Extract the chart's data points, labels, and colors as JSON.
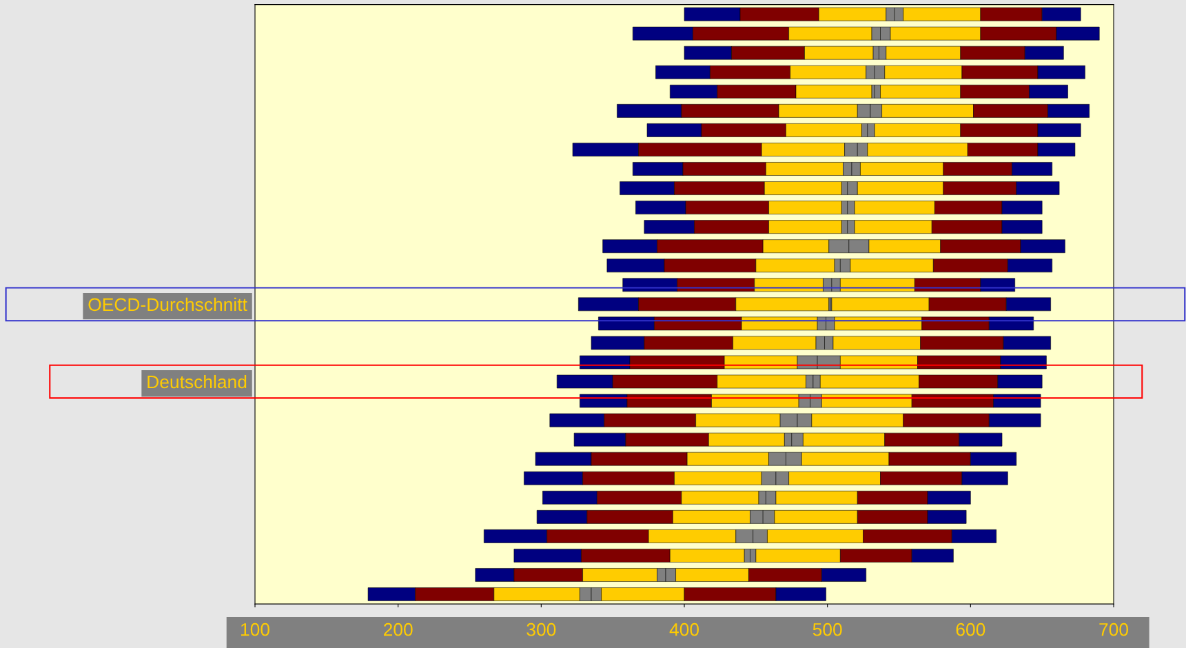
{
  "chart_data": {
    "type": "bar",
    "orientation": "horizontal",
    "categories": [
      null,
      null,
      null,
      null,
      null,
      null,
      null,
      null,
      null,
      null,
      null,
      null,
      null,
      null,
      null,
      "OECD-Durchschnitt",
      null,
      null,
      null,
      "Deutschland",
      null,
      null,
      null,
      null,
      null,
      null,
      null,
      null,
      null,
      null,
      null
    ],
    "series": [
      {
        "color": "#000080",
        "base": [
          400,
          364,
          400,
          380,
          390,
          353,
          374,
          322,
          364,
          355,
          366,
          372,
          343,
          346,
          357,
          326,
          340,
          335,
          327,
          311,
          327,
          306,
          323,
          296,
          288,
          301,
          297,
          260,
          281,
          254,
          179
        ],
        "values": [
          39,
          42,
          33,
          38,
          33,
          45,
          38,
          46,
          35,
          38,
          35,
          35,
          38,
          40,
          38,
          42,
          39,
          37,
          35,
          39,
          33,
          38,
          36,
          39,
          41,
          38,
          35,
          44,
          47,
          27,
          33
        ]
      },
      {
        "color": "#800000",
        "base": [
          439,
          406,
          433,
          418,
          423,
          398,
          412,
          368,
          399,
          393,
          401,
          407,
          381,
          386,
          395,
          368,
          379,
          372,
          362,
          350,
          360,
          344,
          359,
          335,
          329,
          339,
          332,
          304,
          328,
          281,
          212
        ],
        "values": [
          55,
          67,
          51,
          56,
          55,
          68,
          59,
          86,
          58,
          63,
          58,
          52,
          74,
          64,
          54,
          68,
          61,
          62,
          66,
          73,
          59,
          64,
          58,
          67,
          64,
          59,
          60,
          71,
          62,
          48,
          55
        ]
      },
      {
        "color": "#ffcc00",
        "base": [
          494,
          473,
          484,
          474,
          478,
          466,
          471,
          454,
          457,
          456,
          459,
          459,
          455,
          450,
          449,
          436,
          440,
          434,
          428,
          423,
          419,
          408,
          417,
          402,
          393,
          398,
          392,
          375,
          390,
          329,
          267
        ],
        "values": [
          47,
          58,
          48,
          53,
          53,
          55,
          53,
          58,
          54,
          54,
          51,
          51,
          46,
          55,
          48,
          65,
          53,
          58,
          51,
          62,
          61,
          59,
          53,
          57,
          61,
          54,
          54,
          61,
          52,
          52,
          60
        ]
      },
      {
        "color": "#808080",
        "base": [
          541,
          531,
          532,
          527,
          531,
          521,
          524,
          512,
          511,
          510,
          510,
          510,
          501,
          505,
          497,
          501,
          493,
          492,
          479,
          485,
          480,
          467,
          470,
          459,
          454,
          452,
          446,
          436,
          442,
          381,
          327
        ],
        "values": [
          6,
          6,
          4,
          6,
          2,
          9,
          4,
          9,
          6,
          4,
          4,
          4,
          14,
          4,
          6,
          1,
          6,
          6,
          14,
          5,
          8,
          12,
          5,
          12,
          10,
          5,
          9,
          12,
          4,
          6,
          8
        ]
      },
      {
        "color": "#808080",
        "base": [
          547,
          537,
          536,
          533,
          533,
          530,
          528,
          521,
          517,
          514,
          514,
          514,
          515,
          509,
          503,
          502,
          499,
          498,
          493,
          490,
          488,
          479,
          475,
          471,
          464,
          457,
          455,
          448,
          446,
          387,
          335
        ],
        "values": [
          6,
          7,
          5,
          7,
          4,
          8,
          5,
          7,
          6,
          7,
          5,
          5,
          14,
          7,
          6,
          1,
          6,
          6,
          16,
          5,
          8,
          10,
          8,
          11,
          9,
          7,
          8,
          10,
          4,
          7,
          7
        ]
      },
      {
        "color": "#ffcc00",
        "base": [
          553,
          544,
          541,
          540,
          537,
          538,
          533,
          528,
          523,
          521,
          519,
          519,
          529,
          516,
          509,
          503,
          505,
          504,
          509,
          495,
          496,
          489,
          483,
          482,
          473,
          464,
          463,
          458,
          450,
          394,
          342
        ],
        "values": [
          54,
          63,
          52,
          54,
          56,
          64,
          60,
          70,
          58,
          60,
          56,
          54,
          50,
          58,
          52,
          68,
          61,
          61,
          54,
          69,
          63,
          64,
          57,
          61,
          64,
          57,
          58,
          67,
          59,
          51,
          58
        ]
      },
      {
        "color": "#800000",
        "base": [
          607,
          607,
          593,
          594,
          593,
          602,
          593,
          598,
          581,
          581,
          575,
          573,
          579,
          574,
          561,
          571,
          566,
          565,
          563,
          564,
          559,
          553,
          540,
          543,
          537,
          521,
          521,
          525,
          509,
          445,
          400
        ],
        "values": [
          43,
          53,
          45,
          53,
          48,
          52,
          54,
          49,
          48,
          51,
          47,
          49,
          56,
          52,
          46,
          54,
          47,
          58,
          58,
          55,
          57,
          60,
          52,
          57,
          57,
          49,
          49,
          62,
          50,
          51,
          64
        ]
      },
      {
        "color": "#000080",
        "base": [
          650,
          660,
          638,
          647,
          641,
          654,
          647,
          647,
          629,
          632,
          622,
          622,
          635,
          626,
          607,
          625,
          613,
          623,
          621,
          619,
          616,
          613,
          592,
          600,
          594,
          570,
          570,
          587,
          559,
          496,
          464
        ],
        "values": [
          27,
          30,
          27,
          33,
          27,
          29,
          30,
          26,
          28,
          30,
          28,
          28,
          31,
          31,
          24,
          31,
          31,
          33,
          32,
          31,
          33,
          36,
          30,
          32,
          32,
          30,
          27,
          31,
          29,
          31,
          35
        ]
      }
    ],
    "xlim": [
      100,
      700
    ],
    "xticks": [
      100,
      200,
      300,
      400,
      500,
      600,
      700
    ],
    "grid": false,
    "legend": false
  }
}
